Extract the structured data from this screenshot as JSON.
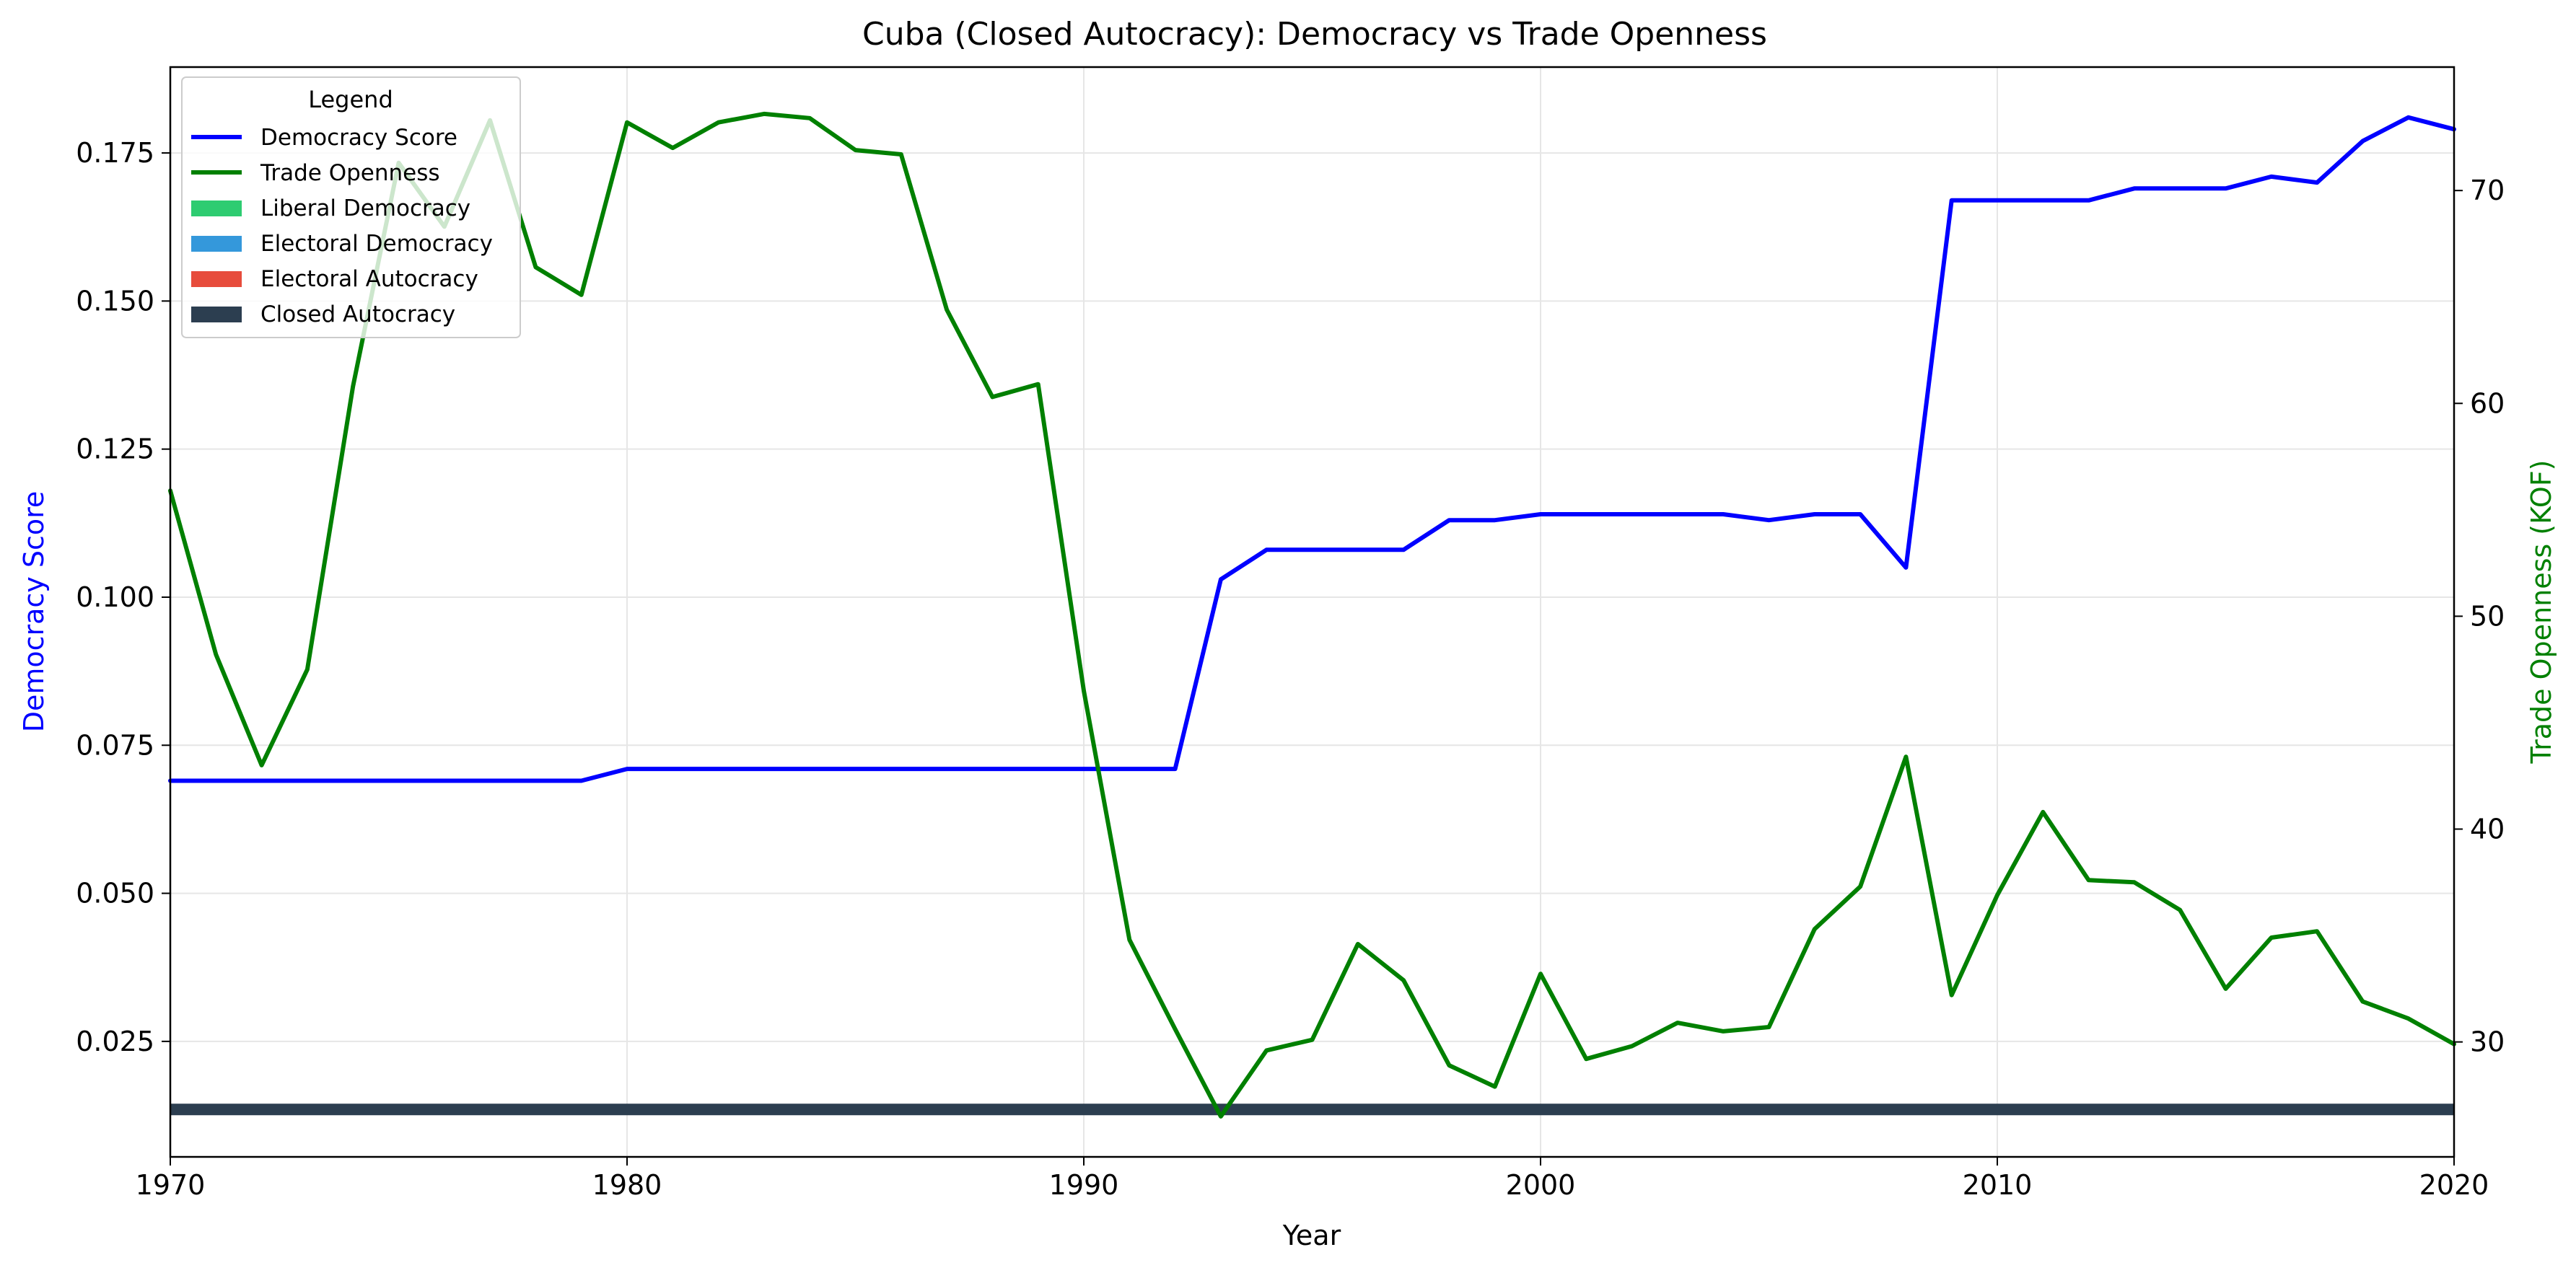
{
  "chart_data": {
    "type": "line",
    "title": "Cuba (Closed Autocracy): Democracy vs Trade Openness",
    "xlabel": "Year",
    "ylabel_left": "Democracy Score",
    "ylabel_right": "Trade Openness (KOF)",
    "xlim": [
      1970,
      2020
    ],
    "ylim_left": [
      0.0055,
      0.1895
    ],
    "ylim_right": [
      24.6,
      75.8
    ],
    "x_ticks": [
      1970,
      1980,
      1990,
      2000,
      2010,
      2020
    ],
    "y_ticks_left": [
      "0.025",
      "0.050",
      "0.075",
      "0.100",
      "0.125",
      "0.150",
      "0.175"
    ],
    "y_ticks_right": [
      "30",
      "40",
      "50",
      "60",
      "70"
    ],
    "grid": true,
    "legend": {
      "title": "Legend",
      "placement": "top-left",
      "entries": [
        {
          "label": "Democracy Score",
          "kind": "line",
          "color": "#0000ff"
        },
        {
          "label": "Trade Openness",
          "kind": "line",
          "color": "#008000"
        },
        {
          "label": "Liberal Democracy",
          "kind": "patch",
          "color": "#2ecc71"
        },
        {
          "label": "Electoral Democracy",
          "kind": "patch",
          "color": "#3498db"
        },
        {
          "label": "Electoral Autocracy",
          "kind": "patch",
          "color": "#e74c3c"
        },
        {
          "label": "Closed Autocracy",
          "kind": "patch",
          "color": "#2c3e50"
        }
      ]
    },
    "x": [
      1970,
      1971,
      1972,
      1973,
      1974,
      1975,
      1976,
      1977,
      1978,
      1979,
      1980,
      1981,
      1982,
      1983,
      1984,
      1985,
      1986,
      1987,
      1988,
      1989,
      1990,
      1991,
      1992,
      1993,
      1994,
      1995,
      1996,
      1997,
      1998,
      1999,
      2000,
      2001,
      2002,
      2003,
      2004,
      2005,
      2006,
      2007,
      2008,
      2009,
      2010,
      2011,
      2012,
      2013,
      2014,
      2015,
      2016,
      2017,
      2018,
      2019,
      2020
    ],
    "series": [
      {
        "name": "Democracy Score",
        "axis": "left",
        "color": "#0000ff",
        "values": [
          0.069,
          0.069,
          0.069,
          0.069,
          0.069,
          0.069,
          0.069,
          0.069,
          0.069,
          0.069,
          0.071,
          0.071,
          0.071,
          0.071,
          0.071,
          0.071,
          0.071,
          0.071,
          0.071,
          0.071,
          0.071,
          0.071,
          0.071,
          0.103,
          0.108,
          0.108,
          0.108,
          0.108,
          0.113,
          0.113,
          0.114,
          0.114,
          0.114,
          0.114,
          0.114,
          0.113,
          0.114,
          0.114,
          0.105,
          0.167,
          0.167,
          0.167,
          0.167,
          0.169,
          0.169,
          0.169,
          0.171,
          0.17,
          0.177,
          0.181,
          0.179
        ]
      },
      {
        "name": "Trade Openness",
        "axis": "right",
        "color": "#008000",
        "values": [
          55.9,
          48.2,
          43.0,
          47.5,
          60.8,
          71.3,
          68.3,
          73.3,
          66.4,
          65.1,
          73.2,
          72.0,
          73.2,
          73.6,
          73.4,
          71.9,
          71.7,
          64.4,
          60.3,
          60.9,
          46.5,
          34.8,
          30.6,
          26.5,
          29.6,
          30.1,
          34.6,
          32.9,
          28.9,
          27.9,
          33.2,
          29.2,
          29.8,
          30.9,
          30.5,
          30.7,
          35.3,
          37.3,
          43.4,
          32.2,
          36.9,
          40.8,
          37.6,
          37.5,
          36.2,
          32.5,
          34.9,
          35.2,
          31.9,
          31.1,
          29.9
        ]
      }
    ],
    "regime_band": {
      "label": "Closed Autocracy",
      "value": 0.0135,
      "color": "#2c3e50"
    }
  }
}
